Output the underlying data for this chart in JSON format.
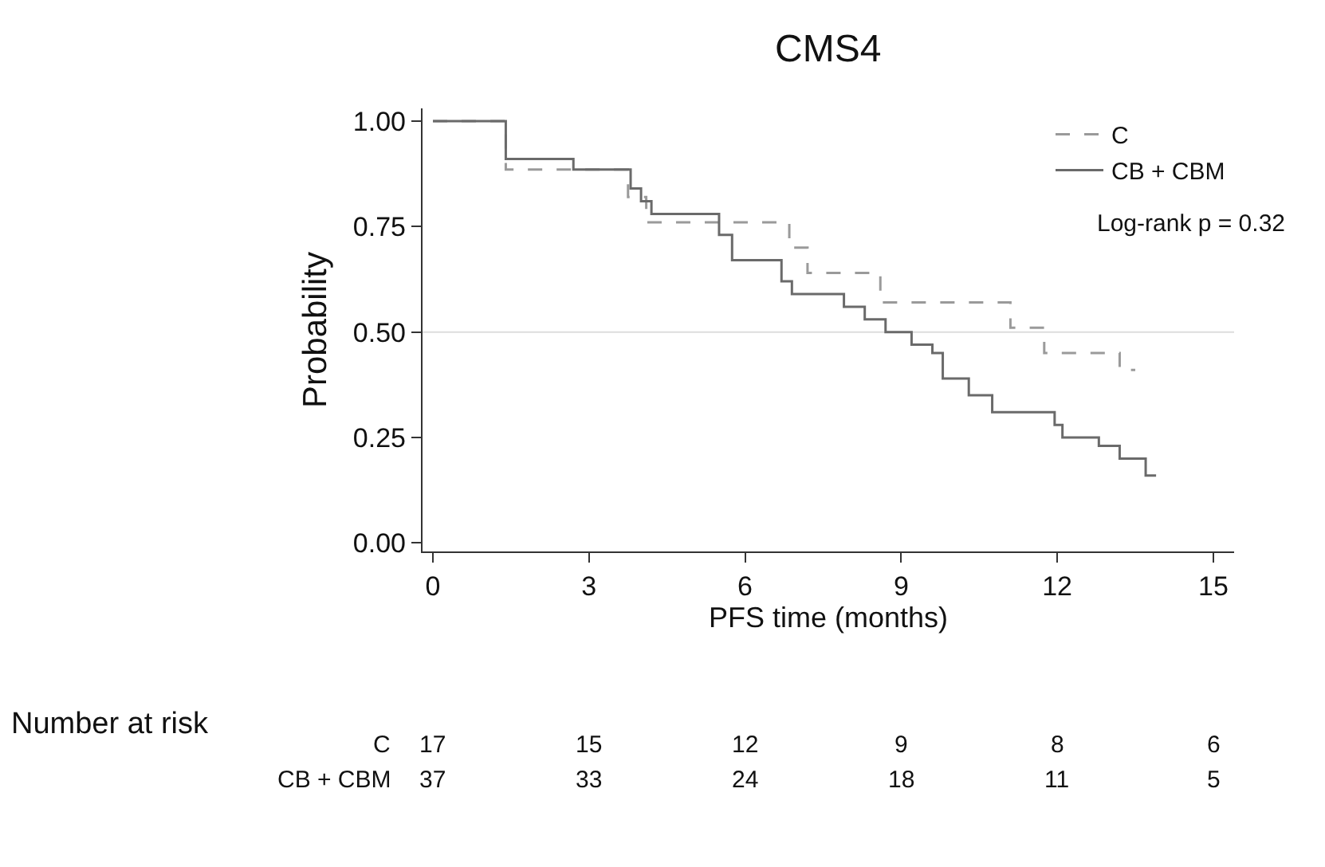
{
  "chart_data": {
    "type": "step",
    "title": "CMS4",
    "xlabel": "PFS time (months)",
    "ylabel": "Probability",
    "xlim": [
      -0.2,
      15.4
    ],
    "xticks": [
      0,
      3,
      6,
      9,
      12,
      15
    ],
    "ylim": [
      -0.02,
      1.03
    ],
    "yticks": [
      {
        "value": 0,
        "label": "0.00"
      },
      {
        "value": 0.25,
        "label": "0.25"
      },
      {
        "value": 0.5,
        "label": "0.50"
      },
      {
        "value": 0.75,
        "label": "0.75"
      },
      {
        "value": 1,
        "label": "1.00"
      }
    ],
    "legend": "top right",
    "grid": false,
    "line_style": "solid",
    "ref_lines": [
      {
        "axis": "y",
        "value": 0.5,
        "label": null,
        "color": "#dddddd"
      }
    ],
    "series": [
      {
        "name": "C",
        "color": "#9a9a9a",
        "line_style": "dashed",
        "x": [
          0,
          1.4,
          3.75,
          4.1,
          6.85,
          7.2,
          8.6,
          11.1,
          11.75,
          13.2,
          13.5
        ],
        "values": [
          1.0,
          0.885,
          0.82,
          0.76,
          0.7,
          0.64,
          0.57,
          0.51,
          0.45,
          0.41,
          0.41
        ]
      },
      {
        "name": "CB + CBM",
        "color": "#6a6a6a",
        "x": [
          0,
          1.4,
          2.7,
          3.8,
          4.0,
          4.2,
          5.5,
          5.75,
          6.7,
          6.9,
          7.9,
          8.3,
          8.7,
          9.2,
          9.6,
          9.8,
          10.3,
          10.75,
          11.95,
          12.1,
          12.8,
          13.2,
          13.7,
          13.9
        ],
        "values": [
          1.0,
          0.91,
          0.885,
          0.84,
          0.81,
          0.78,
          0.73,
          0.67,
          0.62,
          0.59,
          0.56,
          0.53,
          0.5,
          0.47,
          0.45,
          0.39,
          0.35,
          0.31,
          0.28,
          0.25,
          0.23,
          0.2,
          0.16,
          0.16
        ]
      }
    ],
    "annotations": [
      "Log-rank p = 0.32",
      "Number at risk",
      "C",
      "17",
      "15",
      "12",
      "9",
      "8",
      "6",
      "CB + CBM",
      "37",
      "33",
      "24",
      "18",
      "11",
      "5"
    ]
  }
}
